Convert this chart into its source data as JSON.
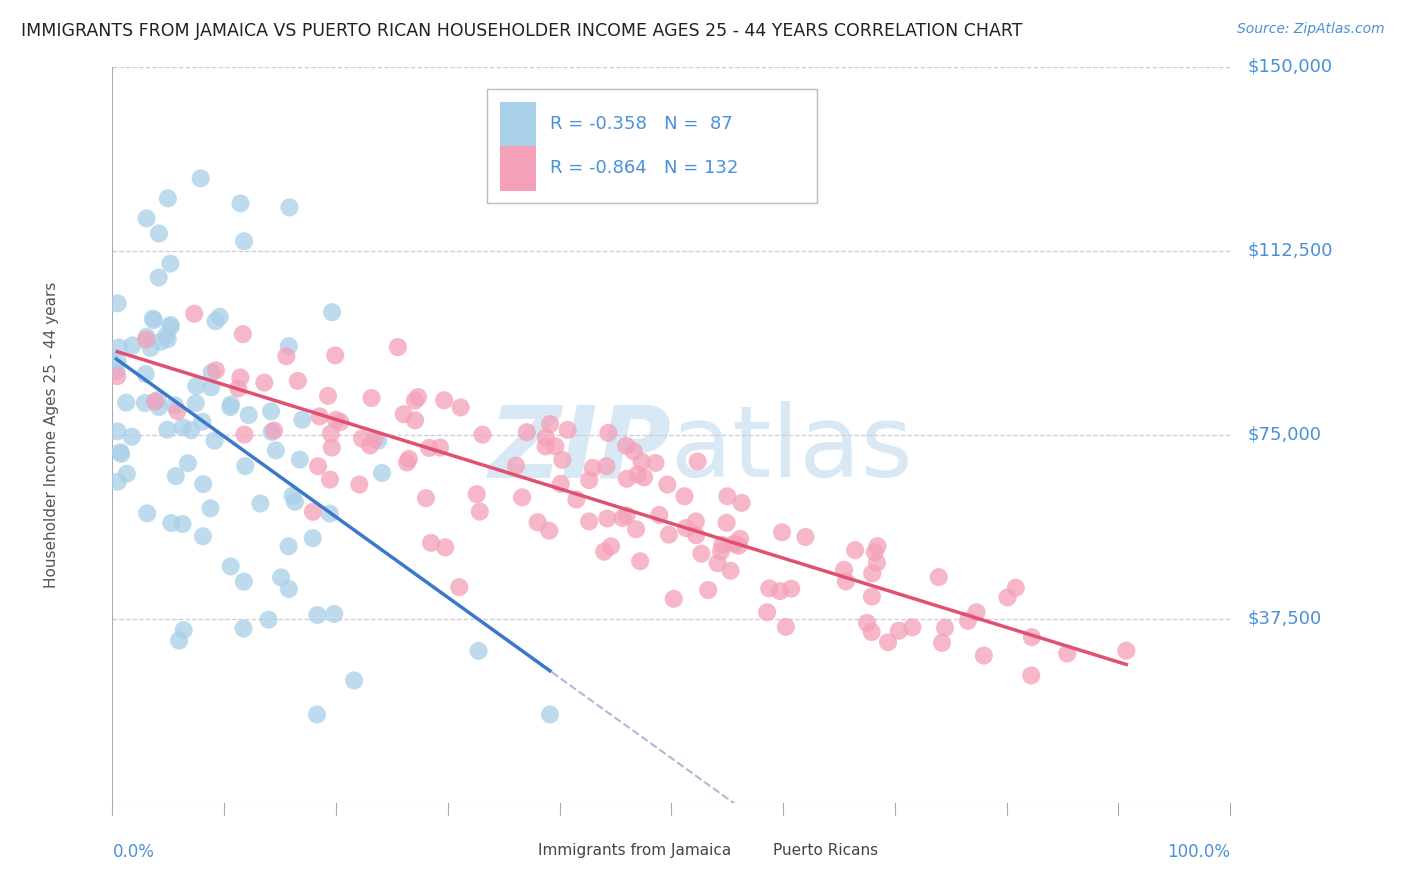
{
  "title": "IMMIGRANTS FROM JAMAICA VS PUERTO RICAN HOUSEHOLDER INCOME AGES 25 - 44 YEARS CORRELATION CHART",
  "source": "Source: ZipAtlas.com",
  "ylabel": "Householder Income Ages 25 - 44 years",
  "xlim": [
    0.0,
    1.0
  ],
  "ylim": [
    0,
    150000
  ],
  "legend_r1": "-0.358",
  "legend_n1": "87",
  "legend_r2": "-0.864",
  "legend_n2": "132",
  "color_jamaica": "#a8d0e8",
  "color_pr": "#f4a0b8",
  "color_jamaica_line": "#3a78c9",
  "color_pr_line": "#e05070",
  "color_dashed": "#b0b8d8",
  "background_color": "#ffffff",
  "grid_color": "#ccccdd",
  "title_color": "#222222",
  "axis_color": "#4a90d9",
  "watermark_color": "#d8e8f4",
  "ytick_vals": [
    37500,
    75000,
    112500,
    150000
  ],
  "ytick_labels": [
    "$37,500",
    "$75,000",
    "$112,500",
    "$150,000"
  ]
}
